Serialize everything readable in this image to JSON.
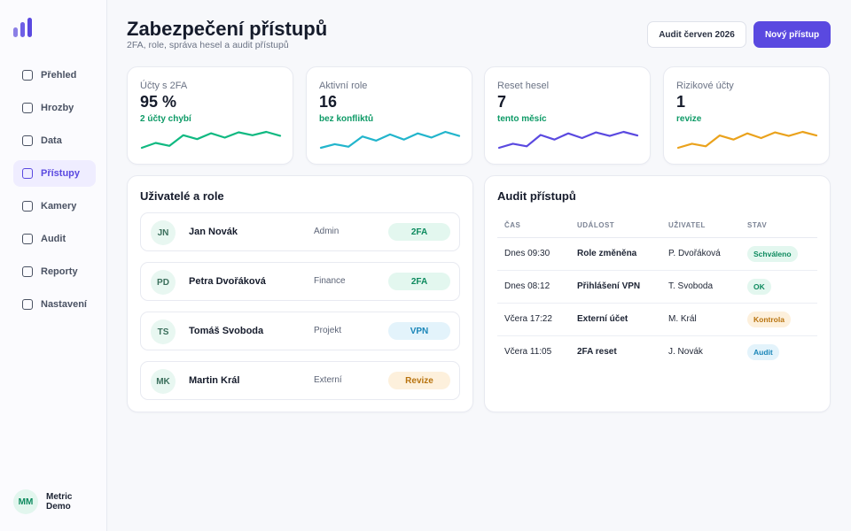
{
  "sidebar": {
    "items": [
      {
        "label": "Přehled"
      },
      {
        "label": "Hrozby"
      },
      {
        "label": "Data"
      },
      {
        "label": "Přístupy",
        "active": true
      },
      {
        "label": "Kamery"
      },
      {
        "label": "Audit"
      },
      {
        "label": "Reporty"
      },
      {
        "label": "Nastavení"
      }
    ],
    "user": {
      "initials": "MM",
      "name": "Metric Demo"
    }
  },
  "header": {
    "title": "Zabezpečení přístupů",
    "subtitle": "2FA, role, správa hesel a audit přístupů",
    "audit_button": "Audit červen 2026",
    "new_button": "Nový přístup"
  },
  "stats": [
    {
      "label": "Účty s 2FA",
      "value": "95 %",
      "note": "2 účty chybí",
      "color": "#10b981",
      "spark": [
        3,
        4,
        3.4,
        5.6,
        4.8,
        6,
        5.1,
        6.2,
        5.6,
        6.3,
        5.5
      ]
    },
    {
      "label": "Aktivní role",
      "value": "16",
      "note": "bez konfliktů",
      "color": "#22b5cc",
      "spark": [
        3,
        3.7,
        3.2,
        5.2,
        4.4,
        5.6,
        4.6,
        5.8,
        5,
        6.1,
        5.3
      ]
    },
    {
      "label": "Reset hesel",
      "value": "7",
      "note": "tento měsíc",
      "color": "#5a49e0",
      "spark": [
        3,
        3.8,
        3.3,
        5.5,
        4.6,
        5.8,
        4.9,
        6,
        5.3,
        6.1,
        5.4
      ]
    },
    {
      "label": "Rizikové účty",
      "value": "1",
      "note": "revize",
      "color": "#eaa21c",
      "spark": [
        3,
        3.8,
        3.3,
        5.4,
        4.6,
        5.8,
        4.9,
        6,
        5.3,
        6.1,
        5.4
      ]
    }
  ],
  "users": {
    "title": "Uživatelé a role",
    "rows": [
      {
        "initials": "JN",
        "name": "Jan Novák",
        "role": "Admin",
        "badge": "2FA",
        "badge_type": "green"
      },
      {
        "initials": "PD",
        "name": "Petra Dvořáková",
        "role": "Finance",
        "badge": "2FA",
        "badge_type": "green"
      },
      {
        "initials": "TS",
        "name": "Tomáš Svoboda",
        "role": "Projekt",
        "badge": "VPN",
        "badge_type": "blue"
      },
      {
        "initials": "MK",
        "name": "Martin Král",
        "role": "Externí",
        "badge": "Revize",
        "badge_type": "orange"
      }
    ]
  },
  "audit": {
    "title": "Audit přístupů",
    "columns": [
      "ČAS",
      "UDÁLOST",
      "UŽIVATEL",
      "STAV"
    ],
    "rows": [
      {
        "time": "Dnes 09:30",
        "event": "Role změněna",
        "user": "P. Dvořáková",
        "status": "Schváleno",
        "status_type": "green"
      },
      {
        "time": "Dnes 08:12",
        "event": "Přihlášení VPN",
        "user": "T. Svoboda",
        "status": "OK",
        "status_type": "green"
      },
      {
        "time": "Včera 17:22",
        "event": "Externí účet",
        "user": "M. Král",
        "status": "Kontrola",
        "status_type": "orange"
      },
      {
        "time": "Včera 11:05",
        "event": "2FA reset",
        "user": "J. Novák",
        "status": "Audit",
        "status_type": "blue"
      }
    ]
  },
  "badge_colors": {
    "green": {
      "bg": "#e3f7ef",
      "fg": "#0d8a5e"
    },
    "blue": {
      "bg": "#e3f3fb",
      "fg": "#1a86b8"
    },
    "orange": {
      "bg": "#fdf0dc",
      "fg": "#b8730e"
    }
  }
}
